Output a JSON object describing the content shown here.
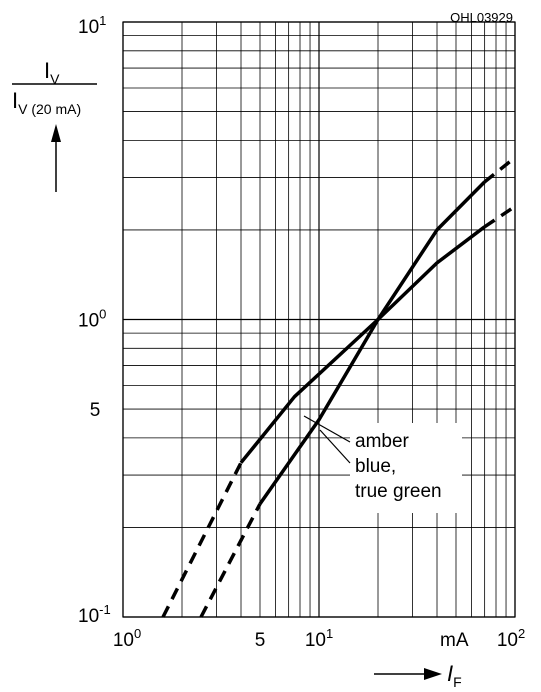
{
  "chart_data": {
    "type": "line",
    "figure_id": "OHL03929",
    "xscale": "log",
    "yscale": "log",
    "xlim": [
      1,
      100
    ],
    "ylim": [
      0.1,
      10
    ],
    "ylabel": {
      "numerator": "I",
      "numerator_sub": "V",
      "denominator": "I",
      "denominator_sub": "V (20 mA)"
    },
    "xlabel": {
      "symbol": "I",
      "sub": "F"
    },
    "x_unit": "mA",
    "x_ticks": [
      {
        "value": 1,
        "base": "10",
        "exp": "0"
      },
      {
        "value": 5,
        "base": "5",
        "exp": ""
      },
      {
        "value": 10,
        "base": "10",
        "exp": "1"
      },
      {
        "value": 100,
        "base": "10",
        "exp": "2"
      }
    ],
    "y_ticks": [
      {
        "value": 0.1,
        "base": "10",
        "exp": "-1"
      },
      {
        "value": 0.5,
        "base": "5",
        "exp": ""
      },
      {
        "value": 1,
        "base": "10",
        "exp": "0"
      },
      {
        "value": 10,
        "base": "10",
        "exp": "1"
      }
    ],
    "grid": true,
    "series": [
      {
        "name": "amber",
        "dashed": [
          [
            1.6,
            0.1
          ],
          [
            4.0,
            0.33
          ]
        ],
        "solid": [
          [
            4.0,
            0.33
          ],
          [
            7.5,
            0.55
          ],
          [
            20,
            1.0
          ],
          [
            40,
            1.55
          ],
          [
            70,
            2.05
          ]
        ],
        "dashed_end": [
          [
            70,
            2.05
          ],
          [
            100,
            2.4
          ]
        ]
      },
      {
        "name": "blue, true green",
        "dashed": [
          [
            2.5,
            0.1
          ],
          [
            5.0,
            0.24
          ]
        ],
        "solid": [
          [
            5.0,
            0.24
          ],
          [
            10,
            0.46
          ],
          [
            20,
            1.0
          ],
          [
            40,
            2.0
          ],
          [
            70,
            2.9
          ]
        ],
        "dashed_end": [
          [
            70,
            2.9
          ],
          [
            100,
            3.5
          ]
        ]
      }
    ],
    "legend": {
      "lines": [
        "amber",
        "blue,",
        "true green"
      ]
    }
  }
}
